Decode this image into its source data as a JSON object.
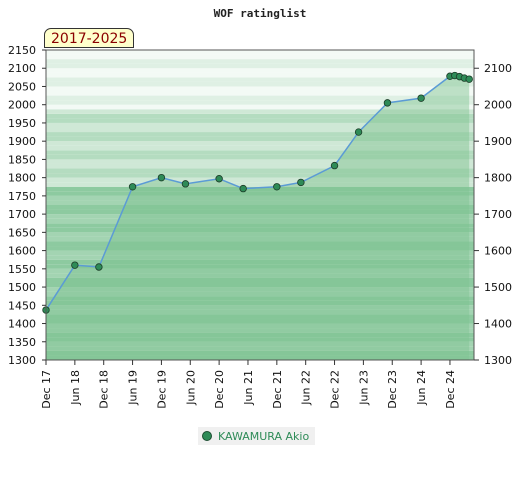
{
  "title": "WOF ratinglist",
  "range_label": "2017-2025",
  "legend": [
    {
      "name": "KAWAMURA Akio",
      "color": "#2e8b57"
    }
  ],
  "colors": {
    "line": "#5b9bd5",
    "fill": "#7cc08f",
    "marker": "#2e8b57"
  },
  "chart_data": {
    "type": "area",
    "title": "WOF ratinglist",
    "xlabel": "",
    "ylabel": "",
    "ylim": [
      1300,
      2150
    ],
    "grid": true,
    "legend_position": "bottom",
    "y_ticks_left": [
      1300,
      1350,
      1400,
      1450,
      1500,
      1550,
      1600,
      1650,
      1700,
      1750,
      1800,
      1850,
      1900,
      1950,
      2000,
      2050,
      2100,
      2150
    ],
    "y_ticks_right": [
      1300,
      1400,
      1500,
      1600,
      1700,
      1800,
      1900,
      2000,
      2100
    ],
    "x_tick_labels": [
      "Dec 17",
      "Jun 18",
      "Dec 18",
      "Jun 19",
      "Dec 19",
      "Jun 20",
      "Dec 20",
      "Jun 21",
      "Dec 21",
      "Jun 22",
      "Dec 22",
      "Jun 23",
      "Dec 23",
      "Jun 24",
      "Dec 24"
    ],
    "series": [
      {
        "name": "KAWAMURA Akio",
        "x": [
          "2017-12",
          "2018-06",
          "2018-11",
          "2019-06",
          "2019-12",
          "2020-05",
          "2020-12",
          "2021-05",
          "2021-12",
          "2022-05",
          "2022-12",
          "2023-05",
          "2023-11",
          "2024-06",
          "2024-12",
          "2025-01",
          "2025-02",
          "2025-03",
          "2025-04"
        ],
        "values": [
          1437,
          1560,
          1555,
          1775,
          1800,
          1783,
          1797,
          1770,
          1775,
          1787,
          1833,
          1925,
          2005,
          2018,
          2078,
          2080,
          2077,
          2073,
          2070
        ]
      }
    ]
  }
}
